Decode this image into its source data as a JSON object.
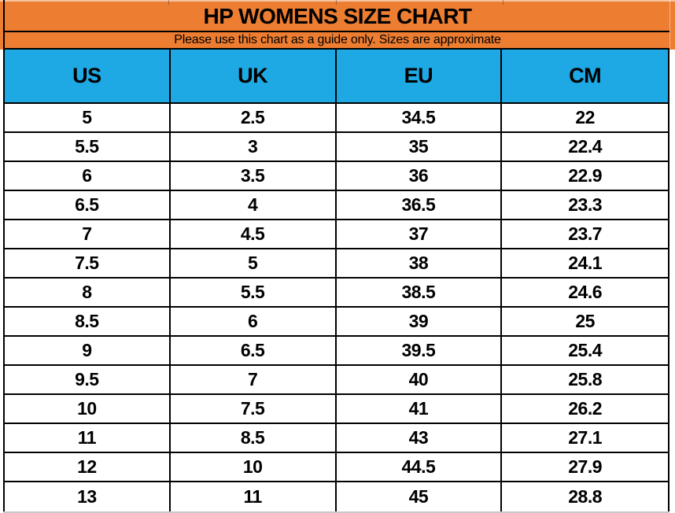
{
  "colors": {
    "orange": "#ED7D31",
    "blue": "#1EA8E4",
    "border": "#000000",
    "text": "#000000",
    "background": "#FFFFFF"
  },
  "chart_data": {
    "type": "table",
    "title": "HP WOMENS SIZE CHART",
    "subtitle": "Please use this chart as a guide only. Sizes are approximate",
    "columns": [
      "US",
      "UK",
      "EU",
      "CM"
    ],
    "rows": [
      [
        "5",
        "2.5",
        "34.5",
        "22"
      ],
      [
        "5.5",
        "3",
        "35",
        "22.4"
      ],
      [
        "6",
        "3.5",
        "36",
        "22.9"
      ],
      [
        "6.5",
        "4",
        "36.5",
        "23.3"
      ],
      [
        "7",
        "4.5",
        "37",
        "23.7"
      ],
      [
        "7.5",
        "5",
        "38",
        "24.1"
      ],
      [
        "8",
        "5.5",
        "38.5",
        "24.6"
      ],
      [
        "8.5",
        "6",
        "39",
        "25"
      ],
      [
        "9",
        "6.5",
        "39.5",
        "25.4"
      ],
      [
        "9.5",
        "7",
        "40",
        "25.8"
      ],
      [
        "10",
        "7.5",
        "41",
        "26.2"
      ],
      [
        "11",
        "8.5",
        "43",
        "27.1"
      ],
      [
        "12",
        "10",
        "44.5",
        "27.9"
      ],
      [
        "13",
        "11",
        "45",
        "28.8"
      ]
    ]
  }
}
